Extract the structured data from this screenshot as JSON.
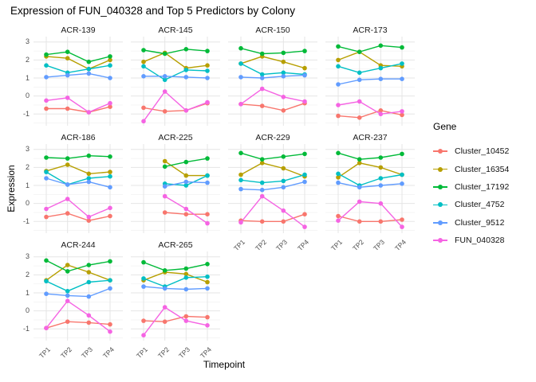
{
  "title": "Expression of FUN_040328 and Top 5 Predictors by Colony",
  "chart_data": {
    "type": "line",
    "title": "Expression of FUN_040328 and Top 5 Predictors by Colony",
    "xlabel": "Timepoint",
    "ylabel": "Expression",
    "legend_title": "Gene",
    "x_categories": [
      "TP1",
      "TP2",
      "TP3",
      "TP4"
    ],
    "yticks": [
      3,
      2,
      1,
      0,
      -1
    ],
    "ylim": [
      -1.65,
      3.3
    ],
    "grid": "major-and-minor-horizontal, major-vertical",
    "legend_position": "right",
    "genes": [
      {
        "name": "Cluster_10452",
        "color": "#F8766D"
      },
      {
        "name": "Cluster_16354",
        "color": "#B79F00"
      },
      {
        "name": "Cluster_17192",
        "color": "#00BA38"
      },
      {
        "name": "Cluster_4752",
        "color": "#00BFC4"
      },
      {
        "name": "Cluster_9512",
        "color": "#619CFF"
      },
      {
        "name": "FUN_040328",
        "color": "#F564E3"
      }
    ],
    "facets": [
      {
        "name": "ACR-139",
        "values": {
          "Cluster_10452": [
            -0.7,
            -0.7,
            -0.9,
            -0.6
          ],
          "Cluster_16354": [
            2.2,
            2.1,
            1.5,
            2.0
          ],
          "Cluster_17192": [
            2.3,
            2.45,
            1.9,
            2.2
          ],
          "Cluster_4752": [
            1.7,
            1.3,
            1.5,
            1.7
          ],
          "Cluster_9512": [
            1.05,
            1.15,
            1.25,
            1.0
          ],
          "FUN_040328": [
            -0.25,
            -0.1,
            -0.9,
            -0.4
          ]
        }
      },
      {
        "name": "ACR-145",
        "values": {
          "Cluster_10452": [
            -0.65,
            -0.85,
            -0.8,
            -0.4
          ],
          "Cluster_16354": [
            1.9,
            2.4,
            1.55,
            1.7
          ],
          "Cluster_17192": [
            2.55,
            2.35,
            2.6,
            2.5
          ],
          "Cluster_4752": [
            1.65,
            0.9,
            1.45,
            1.4
          ],
          "Cluster_9512": [
            1.1,
            1.1,
            1.05,
            1.0
          ],
          "FUN_040328": [
            -1.4,
            0.25,
            -0.8,
            -0.35
          ]
        }
      },
      {
        "name": "ACR-150",
        "values": {
          "Cluster_10452": [
            -0.45,
            -0.55,
            -0.8,
            -0.4
          ],
          "Cluster_16354": [
            1.8,
            2.2,
            1.9,
            1.55
          ],
          "Cluster_17192": [
            2.65,
            2.35,
            2.4,
            2.5
          ],
          "Cluster_4752": [
            1.8,
            1.2,
            1.3,
            1.2
          ],
          "Cluster_9512": [
            1.05,
            1.0,
            1.1,
            1.15
          ],
          "FUN_040328": [
            -0.45,
            0.4,
            -0.05,
            -0.3
          ]
        }
      },
      {
        "name": "ACR-173",
        "values": {
          "Cluster_10452": [
            -1.1,
            -1.2,
            -0.8,
            -1.05
          ],
          "Cluster_16354": [
            2.0,
            2.45,
            1.7,
            1.65
          ],
          "Cluster_17192": [
            2.75,
            2.45,
            2.8,
            2.7
          ],
          "Cluster_4752": [
            1.65,
            1.3,
            1.55,
            1.8
          ],
          "Cluster_9512": [
            0.65,
            0.9,
            0.95,
            0.95
          ],
          "FUN_040328": [
            -0.5,
            -0.3,
            -1.0,
            -0.85
          ]
        }
      },
      {
        "name": "ACR-186",
        "values": {
          "Cluster_10452": [
            -0.75,
            -0.55,
            -0.95,
            -0.7
          ],
          "Cluster_16354": [
            1.8,
            2.15,
            1.65,
            1.75
          ],
          "Cluster_17192": [
            2.55,
            2.5,
            2.65,
            2.6
          ],
          "Cluster_4752": [
            1.75,
            1.05,
            1.4,
            1.5
          ],
          "Cluster_9512": [
            1.4,
            1.05,
            1.2,
            0.9
          ],
          "FUN_040328": [
            -0.3,
            0.25,
            -0.75,
            -0.25
          ]
        }
      },
      {
        "name": "ACR-225",
        "values": {
          "Cluster_10452": [
            null,
            -0.5,
            -0.6,
            -0.6
          ],
          "Cluster_16354": [
            null,
            2.35,
            1.55,
            1.55
          ],
          "Cluster_17192": [
            null,
            2.05,
            2.3,
            2.5
          ],
          "Cluster_4752": [
            null,
            1.1,
            1.0,
            1.55
          ],
          "Cluster_9512": [
            null,
            0.95,
            1.2,
            1.15
          ],
          "FUN_040328": [
            null,
            0.4,
            -0.3,
            -1.1
          ]
        }
      },
      {
        "name": "ACR-229",
        "values": {
          "Cluster_10452": [
            -0.95,
            -1.0,
            -1.0,
            -0.6
          ],
          "Cluster_16354": [
            1.6,
            2.25,
            1.95,
            1.5
          ],
          "Cluster_17192": [
            2.8,
            2.45,
            2.6,
            2.75
          ],
          "Cluster_4752": [
            1.3,
            1.15,
            1.25,
            1.6
          ],
          "Cluster_9512": [
            0.8,
            0.75,
            0.9,
            1.2
          ],
          "FUN_040328": [
            -1.05,
            0.4,
            -0.4,
            -1.3
          ]
        }
      },
      {
        "name": "ACR-237",
        "values": {
          "Cluster_10452": [
            -0.7,
            -1.0,
            -1.0,
            -0.9
          ],
          "Cluster_16354": [
            1.45,
            2.25,
            2.0,
            1.6
          ],
          "Cluster_17192": [
            2.8,
            2.45,
            2.55,
            2.75
          ],
          "Cluster_4752": [
            1.65,
            1.0,
            1.4,
            1.6
          ],
          "Cluster_9512": [
            1.15,
            0.9,
            1.0,
            1.1
          ],
          "FUN_040328": [
            -0.95,
            0.1,
            0.0,
            -1.3
          ]
        }
      },
      {
        "name": "ACR-244",
        "values": {
          "Cluster_10452": [
            -0.95,
            -0.6,
            -0.65,
            -0.75
          ],
          "Cluster_16354": [
            1.7,
            2.55,
            2.15,
            1.7
          ],
          "Cluster_17192": [
            2.8,
            2.2,
            2.55,
            2.75
          ],
          "Cluster_4752": [
            1.65,
            1.1,
            1.6,
            1.7
          ],
          "Cluster_9512": [
            0.95,
            0.85,
            0.8,
            1.25
          ],
          "FUN_040328": [
            -0.95,
            0.55,
            -0.25,
            -1.15
          ]
        }
      },
      {
        "name": "ACR-265",
        "values": {
          "Cluster_10452": [
            -0.55,
            -0.6,
            -0.3,
            -0.35
          ],
          "Cluster_16354": [
            1.7,
            2.15,
            2.05,
            1.6
          ],
          "Cluster_17192": [
            2.7,
            2.25,
            2.35,
            2.6
          ],
          "Cluster_4752": [
            1.8,
            1.35,
            1.85,
            1.9
          ],
          "Cluster_9512": [
            1.35,
            1.25,
            1.2,
            1.25
          ],
          "FUN_040328": [
            -1.35,
            0.2,
            -0.55,
            -0.8
          ]
        }
      }
    ]
  },
  "colors": {
    "grid_major": "#e5e5e5",
    "grid_minor": "#f2f2f2",
    "tick_text": "#4d4d4d",
    "strip_text": "#1a1a1a"
  }
}
